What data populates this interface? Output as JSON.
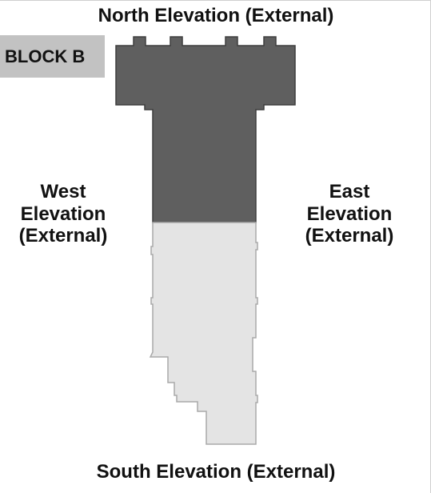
{
  "labels": {
    "north": "North Elevation (External)",
    "south": "South Elevation (External)",
    "west": "West\nElevation\n(External)",
    "east": "East\nElevation\n(External)"
  },
  "block_tag": "BLOCK B",
  "colors": {
    "dark_section": "#5f5f5f",
    "dark_outline": "#3f3f3f",
    "light_section": "#e4e4e4",
    "light_outline": "#a9a9a9",
    "tag_background": "#c2c2c2"
  }
}
